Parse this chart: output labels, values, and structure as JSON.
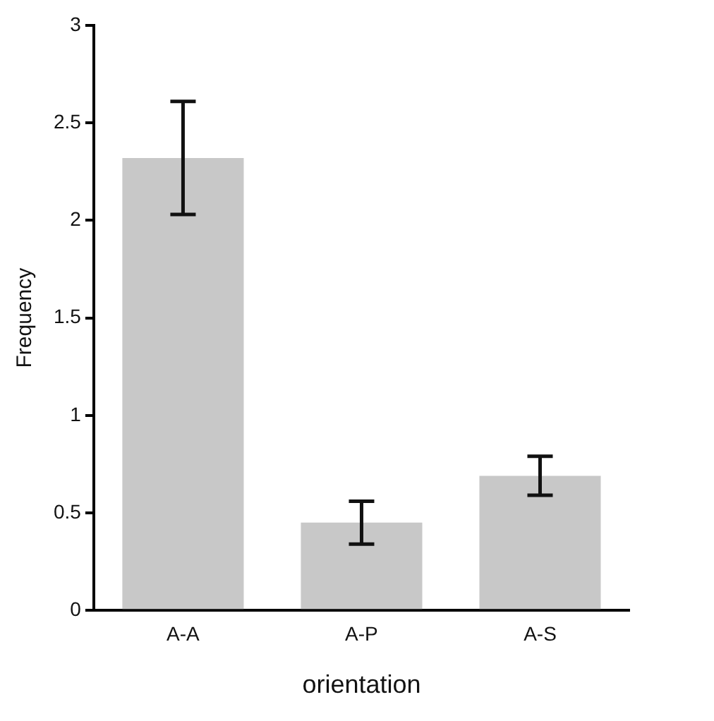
{
  "chart_data": {
    "type": "bar",
    "xlabel": "orientation",
    "ylabel": "Frequency",
    "categories": [
      "A-A",
      "A-P",
      "A-S"
    ],
    "values": [
      2.32,
      0.45,
      0.69
    ],
    "errors": [
      0.29,
      0.11,
      0.1
    ],
    "color": "#c8c8c8",
    "ylim": [
      0,
      3
    ],
    "yticks": [
      0,
      0.5,
      1,
      1.5,
      2,
      2.5,
      3
    ],
    "grid": false,
    "legend": false
  }
}
